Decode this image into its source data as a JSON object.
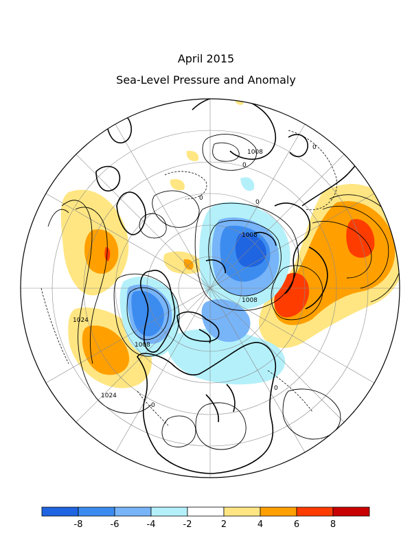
{
  "title": {
    "line1": "April 2015",
    "line2": "Sea-Level Pressure and Anomaly"
  },
  "contour_labels": {
    "c1008_top": "1008",
    "c1008_center": "1008",
    "c1008_center2": "1008",
    "c1008_left": "1008",
    "c1024_left": "1024",
    "c1024_bottom": "1024",
    "zero_1": "0",
    "zero_2": "0",
    "zero_3": "0",
    "zero_4": "0",
    "zero_5": "0",
    "zero_6": "0"
  },
  "colorbar": {
    "colors": [
      "#1f64e0",
      "#3c8cf0",
      "#78b4f8",
      "#b4f0fa",
      "#ffffff",
      "#ffe682",
      "#ffa000",
      "#ff3c00",
      "#c80000"
    ],
    "ticks": [
      "-8",
      "-6",
      "-4",
      "-2",
      "2",
      "4",
      "6",
      "8"
    ]
  },
  "colors": {
    "neg_strong": "#1f64e0",
    "neg_mid": "#3c8cf0",
    "neg_light": "#78b4f8",
    "neg_faint": "#b4f0fa",
    "pos_faint": "#ffe682",
    "pos_mid": "#ffa000",
    "pos_strong": "#ff3c00",
    "pos_max": "#c80000"
  }
}
